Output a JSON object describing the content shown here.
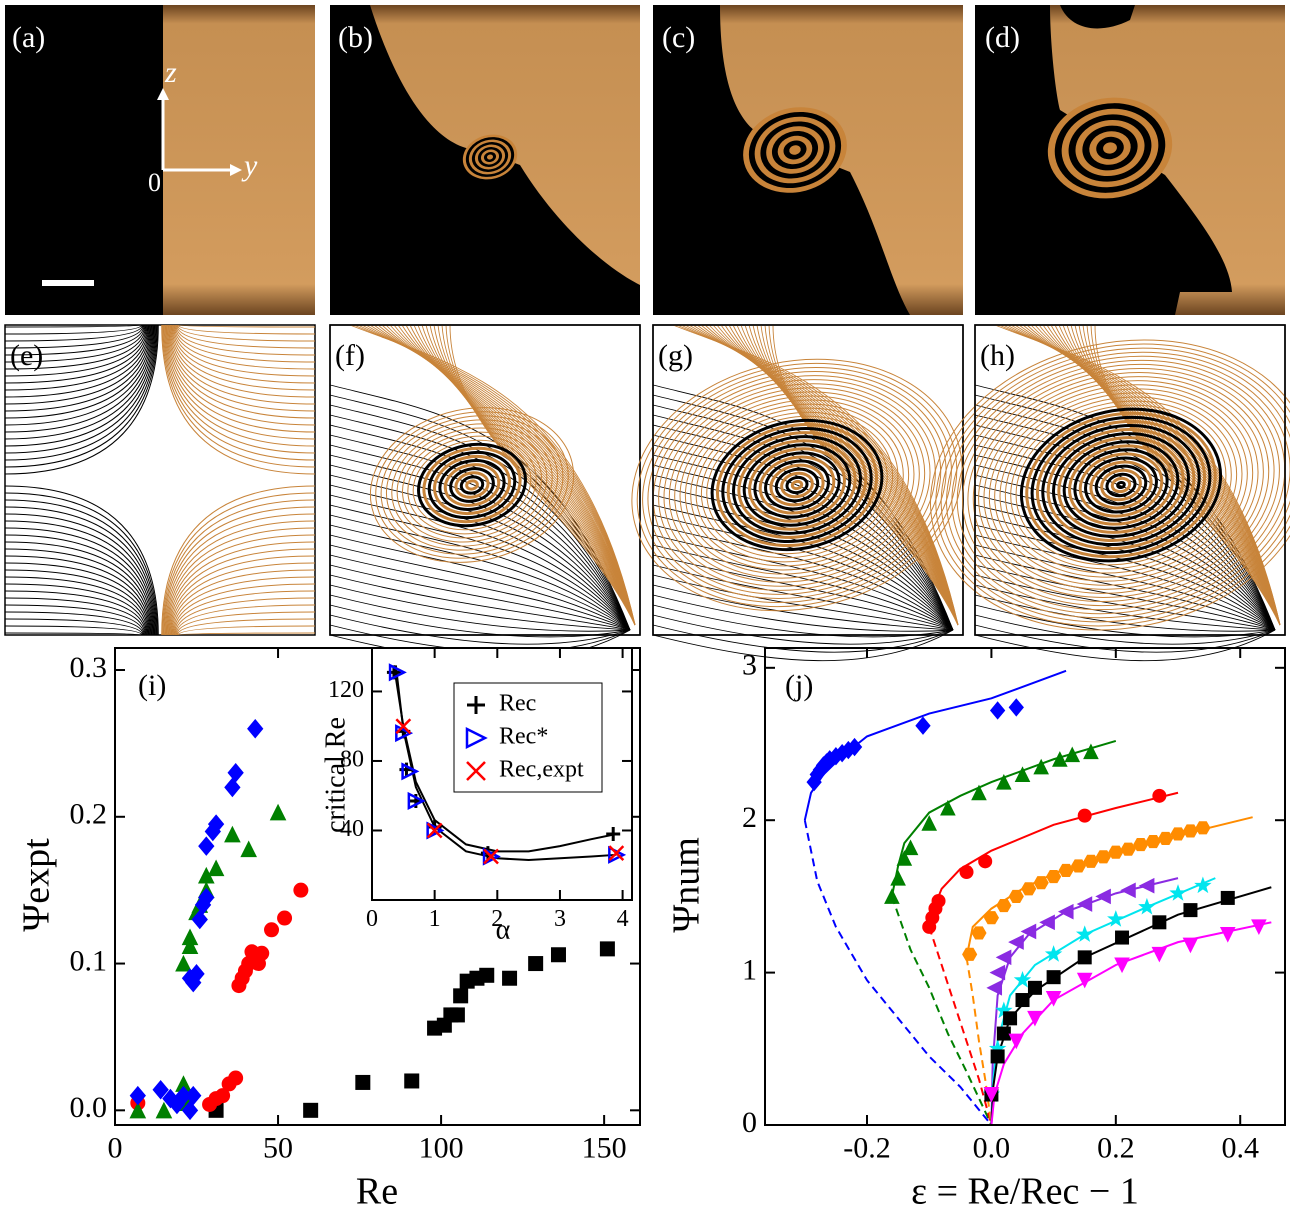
{
  "panels": {
    "labels": [
      "(a)",
      "(b)",
      "(c)",
      "(d)",
      "(e)",
      "(f)",
      "(g)",
      "(h)"
    ]
  },
  "axes_annotation": {
    "z": "z",
    "y": "y",
    "origin": "0"
  },
  "chart_data": [
    {
      "type": "scatter",
      "panel_label": "(i)",
      "x_label": "Re",
      "y_label": "Ψexpt",
      "xlim": [
        0,
        161
      ],
      "ylim": [
        -0.01,
        0.315
      ],
      "xticks": [
        0,
        50,
        100,
        150
      ],
      "yticks": [
        {
          "value": 0,
          "label": "0.0"
        },
        0.1,
        0.2,
        0.3
      ],
      "series": [
        {
          "color": "#000000",
          "marker": "square",
          "x": [
            31,
            60,
            76,
            91,
            98,
            101,
            103,
            105,
            106,
            108,
            111,
            114,
            121,
            129,
            136,
            151
          ],
          "values": [
            0,
            0,
            0.019,
            0.02,
            0.056,
            0.058,
            0.065,
            0.065,
            0.078,
            0.088,
            0.09,
            0.092,
            0.09,
            0.1,
            0.106,
            0.11
          ]
        },
        {
          "color": "#ff0000",
          "marker": "circle",
          "x": [
            7,
            29,
            31,
            33,
            35,
            37,
            38,
            39,
            40,
            41,
            42,
            44,
            45,
            48,
            52,
            57
          ],
          "values": [
            0.005,
            0.004,
            0.008,
            0.01,
            0.018,
            0.022,
            0.085,
            0.09,
            0.095,
            0.1,
            0.108,
            0.1,
            0.107,
            0.123,
            0.131,
            0.15
          ]
        },
        {
          "color": "#008000",
          "marker": "triangle-up",
          "x": [
            7,
            15,
            21,
            22,
            21,
            23,
            23,
            25,
            26,
            28,
            28,
            31,
            36,
            41,
            50
          ],
          "values": [
            0,
            0,
            0.018,
            0.005,
            0.1,
            0.112,
            0.118,
            0.135,
            0.14,
            0.15,
            0.16,
            0.165,
            0.188,
            0.178,
            0.203
          ]
        },
        {
          "color": "#0000ff",
          "marker": "diamond",
          "x": [
            7,
            14,
            17,
            19,
            21,
            23,
            24,
            23,
            24,
            25,
            26,
            27,
            28,
            28,
            30,
            31,
            36,
            37,
            43
          ],
          "values": [
            0.01,
            0.014,
            0.008,
            0.004,
            0.01,
            0.0,
            0.01,
            0.09,
            0.087,
            0.093,
            0.13,
            0.14,
            0.145,
            0.18,
            0.19,
            0.195,
            0.22,
            0.23,
            0.26
          ]
        }
      ]
    },
    {
      "type": "scatter",
      "x_label": "α",
      "y_label": "critical Re",
      "legend": "upper right",
      "xlim": [
        0,
        4.15
      ],
      "ylim": [
        0,
        145
      ],
      "xticks": [
        0,
        1,
        2,
        3,
        4
      ],
      "yticks": [
        40,
        80,
        120
      ],
      "series": [
        {
          "name": "Rec",
          "color": "#000000",
          "marker": "plus",
          "x": [
            0.35,
            0.5,
            0.55,
            0.7,
            1,
            1.85,
            3.85
          ],
          "values": [
            131,
            97,
            75,
            57,
            42,
            27,
            38
          ]
        },
        {
          "name": "Rec*",
          "color": "#0000ff",
          "marker": "tri-right-open",
          "x": [
            0.4,
            0.5,
            0.6,
            0.7,
            1,
            1.9,
            3.9
          ],
          "values": [
            131,
            96,
            74,
            57,
            40,
            25,
            26
          ]
        },
        {
          "name": "Rec,expt",
          "color": "#ff0000",
          "marker": "cross",
          "x": [
            0.5,
            1,
            1.9,
            3.9
          ],
          "values": [
            100,
            40,
            25,
            27
          ]
        }
      ],
      "fits": [
        {
          "color": "#000000",
          "x": [
            0.35,
            0.5,
            0.7,
            1,
            1.5,
            2,
            2.5,
            3,
            3.5,
            3.9
          ],
          "values": [
            135,
            100,
            68,
            46,
            32,
            28,
            28,
            31,
            35,
            38
          ]
        },
        {
          "color": "#000000",
          "x": [
            0.38,
            0.5,
            0.7,
            1,
            1.5,
            2,
            2.5,
            3,
            3.5,
            3.9
          ],
          "values": [
            135,
            98,
            65,
            42,
            28,
            24,
            23,
            24,
            25,
            26
          ]
        }
      ]
    },
    {
      "type": "scatter",
      "panel_label": "(j)",
      "x_label": "ε = Re/Rec − 1",
      "y_label": "Ψnum",
      "xlim": [
        -0.364,
        0.472
      ],
      "ylim": [
        0,
        3.13
      ],
      "xticks": [
        -0.2,
        {
          "value": 0,
          "label": "0.0"
        },
        0.2,
        0.4
      ],
      "yticks": [
        0,
        1,
        2,
        3
      ],
      "series": [
        {
          "color": "#0000ff",
          "marker": "diamond",
          "x": [
            -0.285,
            -0.28,
            -0.275,
            -0.27,
            -0.265,
            -0.26,
            -0.25,
            -0.24,
            -0.23,
            -0.22,
            -0.11,
            0.01,
            0.04
          ],
          "values": [
            2.25,
            2.3,
            2.33,
            2.36,
            2.38,
            2.4,
            2.42,
            2.44,
            2.46,
            2.48,
            2.62,
            2.72,
            2.74
          ]
        },
        {
          "color": "#008000",
          "marker": "triangle-up",
          "x": [
            -0.16,
            -0.15,
            -0.14,
            -0.13,
            -0.1,
            -0.07,
            -0.02,
            0.02,
            0.05,
            0.08,
            0.11,
            0.13,
            0.16
          ],
          "values": [
            1.5,
            1.62,
            1.75,
            1.82,
            1.98,
            2.08,
            2.18,
            2.25,
            2.3,
            2.35,
            2.4,
            2.43,
            2.45
          ]
        },
        {
          "color": "#ff0000",
          "marker": "circle",
          "x": [
            -0.1,
            -0.095,
            -0.09,
            -0.085,
            -0.04,
            -0.01,
            0.15,
            0.27
          ],
          "values": [
            1.3,
            1.36,
            1.42,
            1.47,
            1.66,
            1.73,
            2.03,
            2.16
          ]
        },
        {
          "color": "#ff8c00",
          "marker": "hexagon",
          "x": [
            -0.035,
            -0.02,
            0,
            0.02,
            0.04,
            0.06,
            0.08,
            0.1,
            0.12,
            0.14,
            0.16,
            0.18,
            0.2,
            0.22,
            0.24,
            0.26,
            0.28,
            0.3,
            0.32,
            0.34
          ],
          "values": [
            1.12,
            1.26,
            1.36,
            1.44,
            1.5,
            1.55,
            1.59,
            1.63,
            1.67,
            1.7,
            1.73,
            1.76,
            1.79,
            1.81,
            1.84,
            1.86,
            1.88,
            1.91,
            1.93,
            1.95
          ]
        },
        {
          "color": "#8a2be2",
          "marker": "triangle-left",
          "x": [
            0.005,
            0.01,
            0.02,
            0.04,
            0.06,
            0.09,
            0.12,
            0.15,
            0.18,
            0.22,
            0.25
          ],
          "values": [
            0.9,
            1.0,
            1.1,
            1.2,
            1.27,
            1.33,
            1.4,
            1.45,
            1.5,
            1.54,
            1.57
          ]
        },
        {
          "color": "#00e5ee",
          "marker": "star",
          "x": [
            0.0,
            0.01,
            0.02,
            0.05,
            0.1,
            0.15,
            0.2,
            0.25,
            0.3,
            0.34
          ],
          "values": [
            0.2,
            0.5,
            0.75,
            0.95,
            1.12,
            1.25,
            1.35,
            1.43,
            1.52,
            1.57
          ]
        },
        {
          "color": "#000000",
          "marker": "square",
          "x": [
            0,
            0.01,
            0.02,
            0.03,
            0.05,
            0.07,
            0.1,
            0.15,
            0.21,
            0.27,
            0.32,
            0.38
          ],
          "values": [
            0.2,
            0.45,
            0.6,
            0.7,
            0.82,
            0.9,
            0.97,
            1.1,
            1.23,
            1.33,
            1.41,
            1.49
          ]
        },
        {
          "color": "#ff00ff",
          "marker": "triangle-down",
          "x": [
            0.0,
            0.04,
            0.07,
            0.1,
            0.15,
            0.21,
            0.27,
            0.32,
            0.38,
            0.43
          ],
          "values": [
            0.2,
            0.55,
            0.7,
            0.83,
            0.95,
            1.05,
            1.12,
            1.18,
            1.25,
            1.3
          ]
        }
      ],
      "fits": [
        {
          "color": "#0000ff",
          "dashed": false,
          "x": [
            -0.3,
            -0.29,
            -0.27,
            -0.24,
            -0.2,
            -0.1,
            0,
            0.12
          ],
          "values": [
            2.0,
            2.18,
            2.3,
            2.42,
            2.55,
            2.7,
            2.8,
            2.98
          ]
        },
        {
          "color": "#0000ff",
          "dashed": true,
          "x": [
            -0.3,
            -0.28,
            -0.25,
            -0.2,
            -0.15,
            -0.1,
            -0.05,
            0
          ],
          "values": [
            2.0,
            1.6,
            1.3,
            0.95,
            0.7,
            0.45,
            0.25,
            0
          ]
        },
        {
          "color": "#008000",
          "dashed": false,
          "x": [
            -0.16,
            -0.15,
            -0.14,
            -0.1,
            -0.05,
            0,
            0.1,
            0.2
          ],
          "values": [
            1.5,
            1.7,
            1.85,
            2.05,
            2.16,
            2.25,
            2.4,
            2.52
          ]
        },
        {
          "color": "#008000",
          "dashed": true,
          "x": [
            -0.16,
            -0.13,
            -0.1,
            -0.07,
            -0.04,
            0
          ],
          "values": [
            1.5,
            1.15,
            0.9,
            0.6,
            0.35,
            0
          ]
        },
        {
          "color": "#ff0000",
          "dashed": false,
          "x": [
            -0.1,
            -0.09,
            -0.08,
            -0.05,
            0,
            0.1,
            0.2,
            0.3
          ],
          "values": [
            1.3,
            1.45,
            1.55,
            1.68,
            1.8,
            1.97,
            2.08,
            2.18
          ]
        },
        {
          "color": "#ff0000",
          "dashed": true,
          "x": [
            -0.1,
            -0.08,
            -0.06,
            -0.04,
            -0.02,
            0
          ],
          "values": [
            1.3,
            1.05,
            0.8,
            0.55,
            0.3,
            0
          ]
        },
        {
          "color": "#ff8c00",
          "dashed": false,
          "x": [
            -0.04,
            -0.035,
            -0.03,
            0,
            0.05,
            0.1,
            0.25,
            0.42
          ],
          "values": [
            1.1,
            1.2,
            1.3,
            1.42,
            1.55,
            1.65,
            1.85,
            2.02
          ]
        },
        {
          "color": "#ff8c00",
          "dashed": true,
          "x": [
            -0.04,
            -0.03,
            -0.02,
            -0.01,
            0
          ],
          "values": [
            1.1,
            0.85,
            0.55,
            0.3,
            0
          ]
        },
        {
          "color": "#8a2be2",
          "dashed": false,
          "x": [
            0,
            0.002,
            0.01,
            0.03,
            0.06,
            0.12,
            0.2,
            0.3
          ],
          "values": [
            0,
            0.4,
            0.85,
            1.1,
            1.25,
            1.4,
            1.52,
            1.62
          ]
        },
        {
          "color": "#00e5ee",
          "dashed": false,
          "x": [
            0,
            0.003,
            0.01,
            0.03,
            0.07,
            0.15,
            0.25,
            0.36
          ],
          "values": [
            0,
            0.3,
            0.55,
            0.85,
            1.05,
            1.25,
            1.43,
            1.62
          ]
        },
        {
          "color": "#000000",
          "dashed": false,
          "x": [
            0,
            0.003,
            0.01,
            0.03,
            0.07,
            0.15,
            0.3,
            0.45
          ],
          "values": [
            0,
            0.25,
            0.45,
            0.7,
            0.88,
            1.1,
            1.38,
            1.56
          ]
        },
        {
          "color": "#ff00ff",
          "dashed": false,
          "x": [
            0,
            0.005,
            0.02,
            0.05,
            0.1,
            0.2,
            0.3,
            0.45
          ],
          "values": [
            0,
            0.2,
            0.4,
            0.6,
            0.82,
            1.05,
            1.2,
            1.33
          ]
        }
      ]
    }
  ]
}
